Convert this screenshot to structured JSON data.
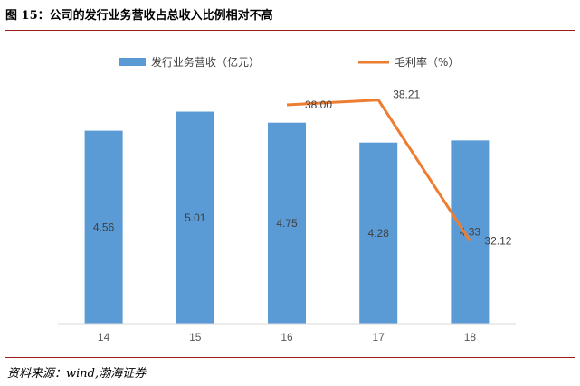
{
  "figure": {
    "title": "图 15：公司的发行业务营收占总收入比例相对不高",
    "source": "资料来源：wind,渤海证券"
  },
  "chart_data": {
    "type": "bar",
    "categories": [
      "14",
      "15",
      "16",
      "17",
      "18"
    ],
    "series": [
      {
        "name": "发行业务营收（亿元）",
        "type": "bar",
        "values": [
          4.56,
          5.01,
          4.75,
          4.28,
          4.33
        ],
        "color": "#5b9bd5"
      },
      {
        "name": "毛利率（%）",
        "type": "line",
        "x": [
          "16",
          "17",
          "18"
        ],
        "values": [
          38.0,
          38.21,
          32.12
        ],
        "color": "#ed7d31"
      }
    ],
    "legend_position": "top",
    "grid": false
  }
}
